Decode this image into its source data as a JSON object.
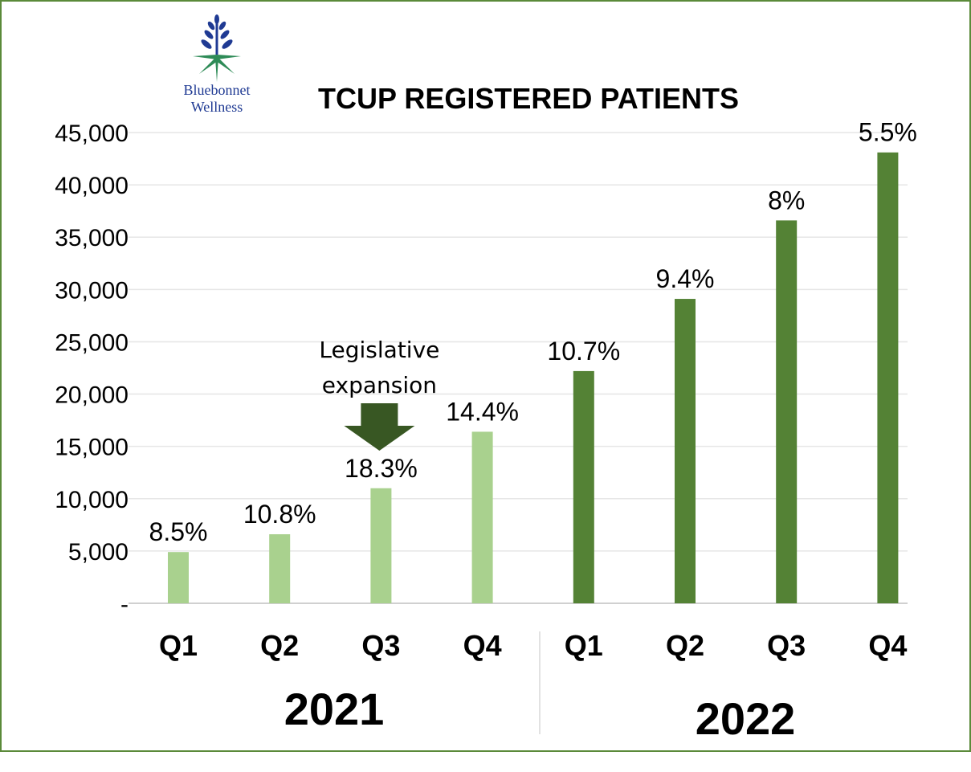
{
  "brand": {
    "line1": "Bluebonnet",
    "line2": "Wellness",
    "logo_icon": "bluebonnet-plant-icon",
    "logo_blue": "#1f3a93",
    "logo_green": "#2e8b57"
  },
  "colors": {
    "bar_2021": "#a9d18e",
    "bar_2022": "#548235",
    "arrow": "#385723",
    "border": "#5b8a3a",
    "grid": "#e6e6e6"
  },
  "chart_data": {
    "type": "bar",
    "title": "TCUP REGISTERED PATIENTS",
    "xlabel": "",
    "ylabel": "",
    "ylim": [
      0,
      45000
    ],
    "yticks": [
      0,
      5000,
      10000,
      15000,
      20000,
      25000,
      30000,
      35000,
      40000,
      45000
    ],
    "ytick_labels": [
      "-",
      "5,000",
      "10,000",
      "15,000",
      "20,000",
      "25,000",
      "30,000",
      "35,000",
      "40,000",
      "45,000"
    ],
    "grid": true,
    "categories": [
      "Q1",
      "Q2",
      "Q3",
      "Q4",
      "Q1",
      "Q2",
      "Q3",
      "Q4"
    ],
    "groups": [
      {
        "year": "2021",
        "count": 4
      },
      {
        "year": "2022",
        "count": 4
      }
    ],
    "series": [
      {
        "name": "Registered patients",
        "values": [
          4900,
          6600,
          11000,
          16400,
          22200,
          29100,
          36600,
          43100
        ],
        "data_labels": [
          "8.5%",
          "10.8%",
          "18.3%",
          "14.4%",
          "10.7%",
          "9.4%",
          "8%",
          "5.5%"
        ],
        "group_index": [
          0,
          0,
          0,
          0,
          1,
          1,
          1,
          1
        ]
      }
    ],
    "annotation": {
      "line1": "Legislative",
      "line2": "expansion",
      "category_index": 2,
      "shape": "down-arrow"
    }
  }
}
